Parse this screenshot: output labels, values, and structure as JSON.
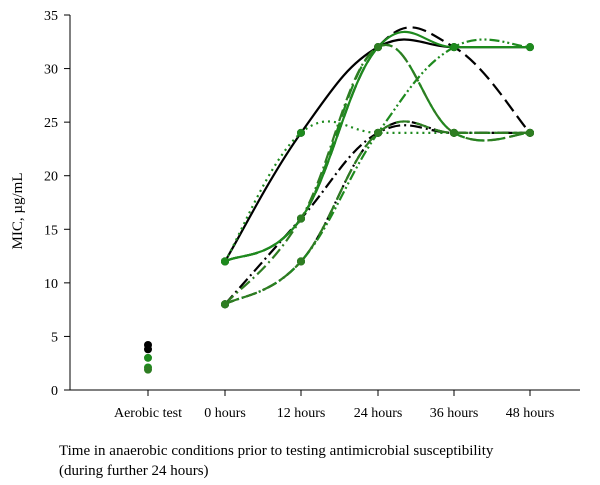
{
  "chart_data": {
    "type": "line",
    "title": "",
    "ylabel": "MIC, µg/mL",
    "xlabel_lines": [
      "Time in anaerobic conditions prior to testing antimicrobial susceptibility",
      "(during further 24 hours)"
    ],
    "categories": [
      "Aerobic test",
      "0 hours",
      "12 hours",
      "24 hours",
      "36 hours",
      "48 hours"
    ],
    "ylim": [
      0,
      35
    ],
    "yticks": [
      "0",
      "5",
      "10",
      "15",
      "20",
      "25",
      "30",
      "35"
    ],
    "grid": false,
    "legend": "none",
    "colors": {
      "black": "#000000",
      "green": "#1e8a1e",
      "darkgreen": "#2e7d22"
    },
    "aerobic_points": [
      {
        "value": 4.2,
        "color": "#000000"
      },
      {
        "value": 3.8,
        "color": "#000000"
      },
      {
        "value": 3.0,
        "color": "#1e8a1e"
      },
      {
        "value": 2.1,
        "color": "#1e8a1e"
      },
      {
        "value": 1.9,
        "color": "#2e7d22"
      }
    ],
    "series": [
      {
        "color": "#000000",
        "dash": "solid",
        "values": [
          null,
          12,
          24,
          32,
          32,
          32
        ]
      },
      {
        "color": "#000000",
        "dash": "longdash",
        "values": [
          null,
          12,
          16,
          32,
          32,
          24
        ]
      },
      {
        "color": "#000000",
        "dash": "dashdot",
        "values": [
          null,
          8,
          16,
          24,
          24,
          24
        ]
      },
      {
        "color": "#000000",
        "dash": "dashdotdot",
        "values": [
          null,
          8,
          12,
          24,
          24,
          24
        ]
      },
      {
        "color": "#1e8a1e",
        "dash": "solid",
        "values": [
          null,
          12,
          16,
          32,
          32,
          32
        ]
      },
      {
        "color": "#1e8a1e",
        "dash": "dotted",
        "values": [
          null,
          12,
          24,
          24,
          24,
          24
        ]
      },
      {
        "color": "#1e8a1e",
        "dash": "longdash",
        "values": [
          null,
          12,
          16,
          32,
          24,
          24
        ]
      },
      {
        "color": "#1e8a1e",
        "dash": "dashdotdot",
        "values": [
          null,
          8,
          12,
          24,
          32,
          32
        ]
      },
      {
        "color": "#2e7d22",
        "dash": "longdash",
        "values": [
          null,
          8,
          12,
          24,
          24,
          24
        ]
      },
      {
        "color": "#2e7d22",
        "dash": "dashdot",
        "values": [
          null,
          8,
          16,
          32,
          24,
          24
        ]
      }
    ]
  }
}
